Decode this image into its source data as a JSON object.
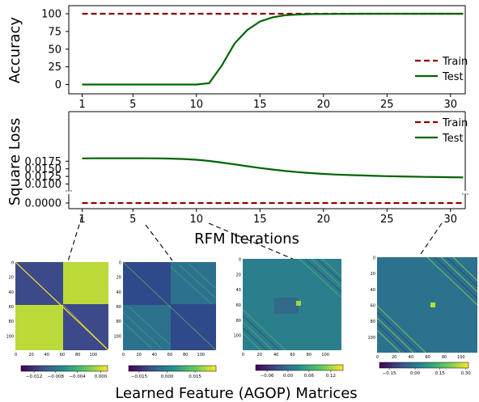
{
  "figure": {
    "xlabel": "RFM Iterations",
    "bottom_title": "Learned Feature (AGOP) Matrices"
  },
  "chart_data": [
    {
      "type": "line",
      "ylabel": "Accuracy",
      "x_ticks": [
        1,
        5,
        10,
        15,
        20,
        25,
        30
      ],
      "y_ticks": [
        0,
        25,
        50,
        75,
        100
      ],
      "xlim": [
        0,
        32
      ],
      "ylim": [
        -5,
        105
      ],
      "legend": "bottom-right",
      "series": [
        {
          "name": "Train",
          "color": "#8b0000",
          "dash": true,
          "x": [
            1,
            31
          ],
          "y": [
            100,
            100
          ]
        },
        {
          "name": "Test",
          "color": "#006400",
          "dash": false,
          "x": [
            1,
            2,
            3,
            4,
            5,
            6,
            7,
            8,
            9,
            10,
            11,
            12,
            13,
            14,
            15,
            16,
            17,
            18,
            19,
            20,
            21,
            22,
            23,
            24,
            25,
            26,
            27,
            28,
            29,
            30,
            31
          ],
          "y": [
            0,
            0,
            0,
            0,
            0,
            0,
            0,
            0,
            0,
            0,
            2,
            27,
            58,
            77,
            89,
            95,
            98,
            99,
            99.5,
            99.7,
            99.8,
            99.9,
            100,
            100,
            100,
            100,
            100,
            100,
            100,
            100,
            100
          ]
        }
      ]
    },
    {
      "type": "line",
      "ylabel": "Square Loss",
      "x_ticks": [
        1,
        5,
        10,
        15,
        20,
        25,
        30
      ],
      "y_ticks": [
        "0.0000",
        "0.0100",
        "0.0125",
        "0.0150",
        "0.0175"
      ],
      "broken_axis": true,
      "legend": "top-right",
      "series": [
        {
          "name": "Train",
          "color": "#8b0000",
          "dash": true,
          "x": [
            1,
            31
          ],
          "y": [
            0,
            0
          ]
        },
        {
          "name": "Test",
          "color": "#006400",
          "dash": false,
          "x": [
            1,
            2,
            3,
            4,
            5,
            6,
            7,
            8,
            9,
            10,
            11,
            12,
            13,
            14,
            15,
            16,
            17,
            18,
            19,
            20,
            21,
            22,
            23,
            24,
            25,
            26,
            27,
            28,
            29,
            30,
            31
          ],
          "y": [
            0.01844,
            0.01846,
            0.01846,
            0.01846,
            0.01846,
            0.01845,
            0.01842,
            0.01835,
            0.01822,
            0.01797,
            0.01758,
            0.01705,
            0.01645,
            0.01585,
            0.01526,
            0.01475,
            0.01428,
            0.0139,
            0.01358,
            0.01333,
            0.01312,
            0.01295,
            0.01281,
            0.01269,
            0.01258,
            0.01249,
            0.01241,
            0.01234,
            0.01228,
            0.01223,
            0.01219
          ]
        }
      ]
    }
  ],
  "matrices": [
    {
      "iteration": 1,
      "yticks": [
        "0",
        "20",
        "40",
        "60",
        "80",
        "100"
      ],
      "xticks": [
        "0",
        "20",
        "40",
        "60",
        "80",
        "100"
      ],
      "cbar_ticks": [
        "−0.012",
        "−0.008",
        "−0.004",
        "0.000"
      ]
    },
    {
      "iteration": 5,
      "yticks": [
        "0",
        "20",
        "40",
        "60",
        "80",
        "100"
      ],
      "xticks": [
        "0",
        "20",
        "40",
        "60",
        "80",
        "100"
      ],
      "cbar_ticks": [
        "−0.015",
        "0.000",
        "0.015"
      ]
    },
    {
      "iteration": 10,
      "yticks": [
        "0",
        "20",
        "40",
        "60",
        "80",
        "100"
      ],
      "xticks": [
        "0",
        "20",
        "40",
        "60",
        "80",
        "100"
      ],
      "cbar_ticks": [
        "−0.06",
        "0.00",
        "0.06",
        "0.12"
      ]
    },
    {
      "iteration": 31,
      "yticks": [
        "0",
        "20",
        "40",
        "60",
        "80",
        "100"
      ],
      "xticks": [
        "0",
        "20",
        "40",
        "60",
        "80",
        "100"
      ],
      "cbar_ticks": [
        "−0.15",
        "0.00",
        "0.15",
        "0.30"
      ]
    }
  ]
}
